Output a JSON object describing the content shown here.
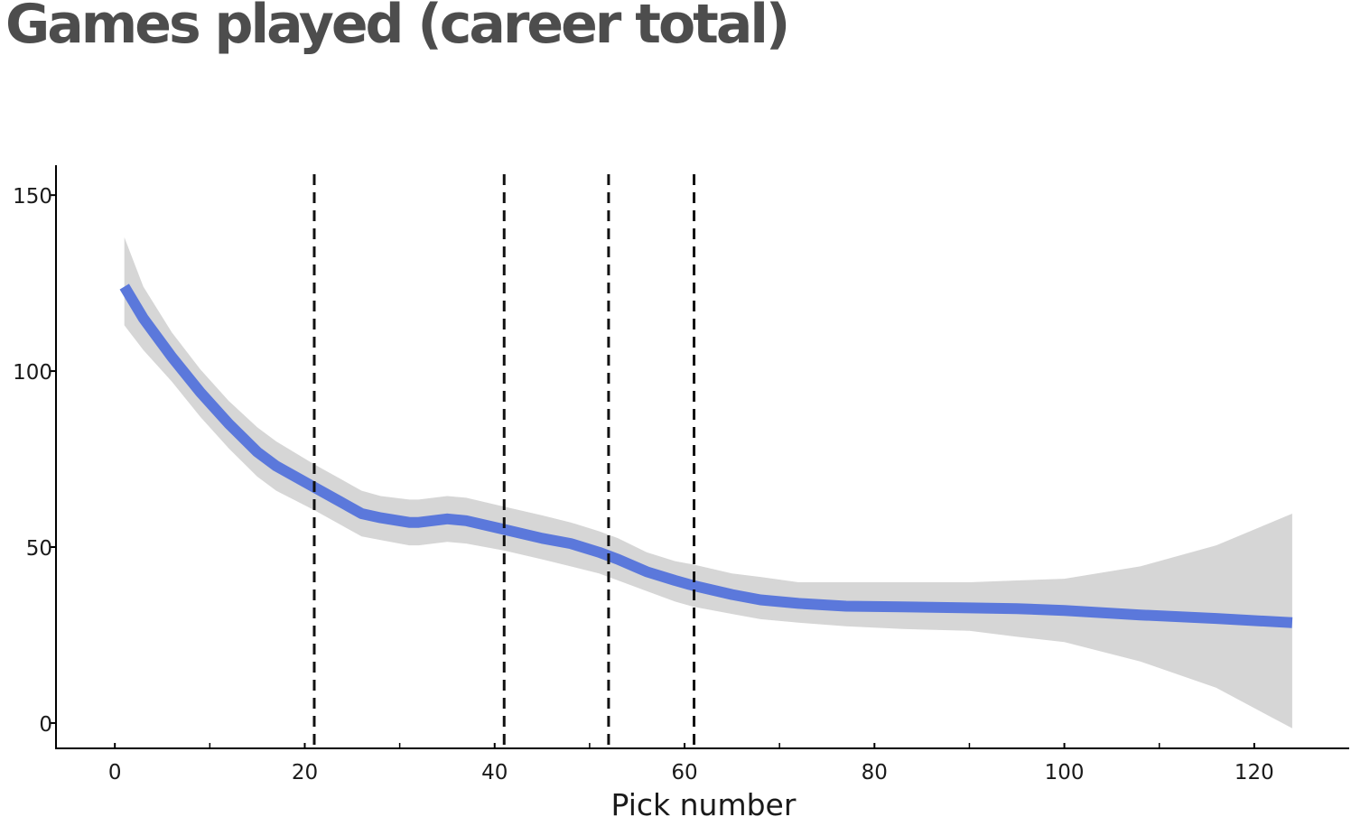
{
  "chart_data": {
    "type": "line",
    "title": "Games played (career total)",
    "xlabel": "Pick number",
    "ylabel": "",
    "xlim": [
      -6.2,
      130
    ],
    "ylim": [
      -7.2,
      158.5
    ],
    "x_ticks": [
      0,
      20,
      40,
      60,
      80,
      100,
      120
    ],
    "x_minor_ticks": [
      10,
      30,
      50,
      70,
      90,
      110
    ],
    "y_ticks": [
      0,
      50,
      100,
      150
    ],
    "grid": false,
    "legend": "none",
    "colors": {
      "line": "#5b78db",
      "band": "#d6d6d6",
      "reference_lines": "#111111",
      "title": "#4d4d4d"
    },
    "reference_lines_x": [
      21,
      41,
      52,
      61
    ],
    "series": [
      {
        "x": [
          1,
          3,
          6,
          9,
          12,
          15,
          17,
          21,
          26,
          28,
          31,
          32,
          35,
          37,
          41,
          45,
          48,
          51,
          53,
          56,
          59,
          61,
          65,
          68,
          72,
          77,
          83,
          90,
          95,
          100,
          108,
          116,
          124
        ],
        "y": [
          124,
          115,
          104,
          94,
          85,
          77,
          73,
          67,
          59.5,
          58.3,
          57,
          57,
          58,
          57.5,
          55,
          52.5,
          51,
          48.5,
          46.5,
          43,
          40.5,
          39,
          36.5,
          35,
          34,
          33.2,
          33,
          32.7,
          32.5,
          32,
          30.7,
          29.7,
          28.5
        ],
        "lower": [
          113,
          106,
          97,
          87,
          78,
          70,
          66,
          60.5,
          53,
          52,
          50.5,
          50.5,
          51.5,
          51,
          49,
          46.5,
          44.5,
          42.5,
          40.5,
          37.5,
          34.5,
          33,
          31,
          29.5,
          28.5,
          27.5,
          26.7,
          26.2,
          24.5,
          23,
          17.5,
          10,
          -1.5
        ],
        "upper": [
          138,
          124,
          111,
          100.5,
          91.5,
          84,
          80,
          73.5,
          66,
          64.5,
          63.5,
          63.5,
          64.5,
          64,
          61.5,
          59,
          57,
          54.5,
          52.5,
          48.5,
          46,
          45,
          42.5,
          41.5,
          40,
          40,
          40,
          40,
          40.5,
          41,
          44.5,
          50.5,
          59.5
        ]
      }
    ]
  }
}
